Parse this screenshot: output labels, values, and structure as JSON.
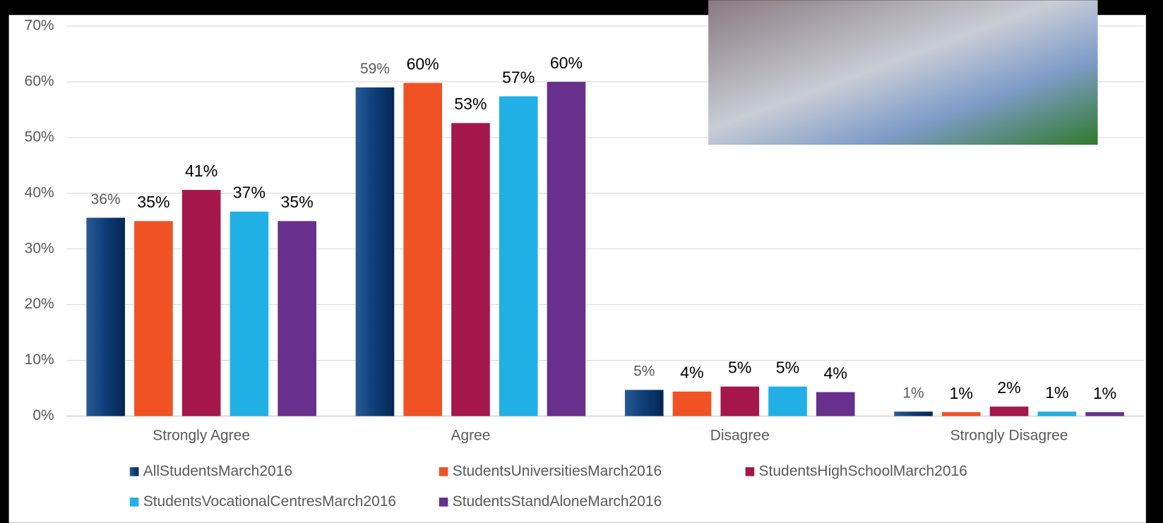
{
  "chart_data": {
    "type": "bar",
    "categories": [
      "Strongly Agree",
      "Agree",
      "Disagree",
      "Strongly Disagree"
    ],
    "series": [
      {
        "name": "AllStudentsMarch2016",
        "color": "#0d3d78",
        "values": [
          35.6,
          59.0,
          4.7,
          0.8
        ],
        "value_labels": [
          "36%",
          "59%",
          "5%",
          "1%"
        ]
      },
      {
        "name": "StudentsUniversitiesMarch2016",
        "color": "#f05224",
        "values": [
          35.0,
          59.8,
          4.4,
          0.7
        ],
        "value_labels": [
          "35%",
          "60%",
          "4%",
          "1%"
        ]
      },
      {
        "name": "StudentsHighSchoolMarch2016",
        "color": "#a5174a",
        "values": [
          40.6,
          52.6,
          5.3,
          1.7
        ],
        "value_labels": [
          "41%",
          "53%",
          "5%",
          "2%"
        ]
      },
      {
        "name": "StudentsVocationalCentresMarch2016",
        "color": "#21b0e6",
        "values": [
          36.7,
          57.4,
          5.3,
          0.8
        ],
        "value_labels": [
          "37%",
          "57%",
          "5%",
          "1%"
        ]
      },
      {
        "name": "StudentsStandAloneMarch2016",
        "color": "#68308c",
        "values": [
          35.0,
          60.0,
          4.3,
          0.7
        ],
        "value_labels": [
          "35%",
          "60%",
          "4%",
          "1%"
        ]
      }
    ],
    "ylim": [
      0,
      70
    ],
    "yticks": [
      {
        "value": 0,
        "label": "0%"
      },
      {
        "value": 10,
        "label": "10%"
      },
      {
        "value": 20,
        "label": "20%"
      },
      {
        "value": 30,
        "label": "30%"
      },
      {
        "value": 40,
        "label": "40%"
      },
      {
        "value": 50,
        "label": "50%"
      },
      {
        "value": 60,
        "label": "60%"
      },
      {
        "value": 70,
        "label": "70%"
      }
    ],
    "grid": true
  }
}
